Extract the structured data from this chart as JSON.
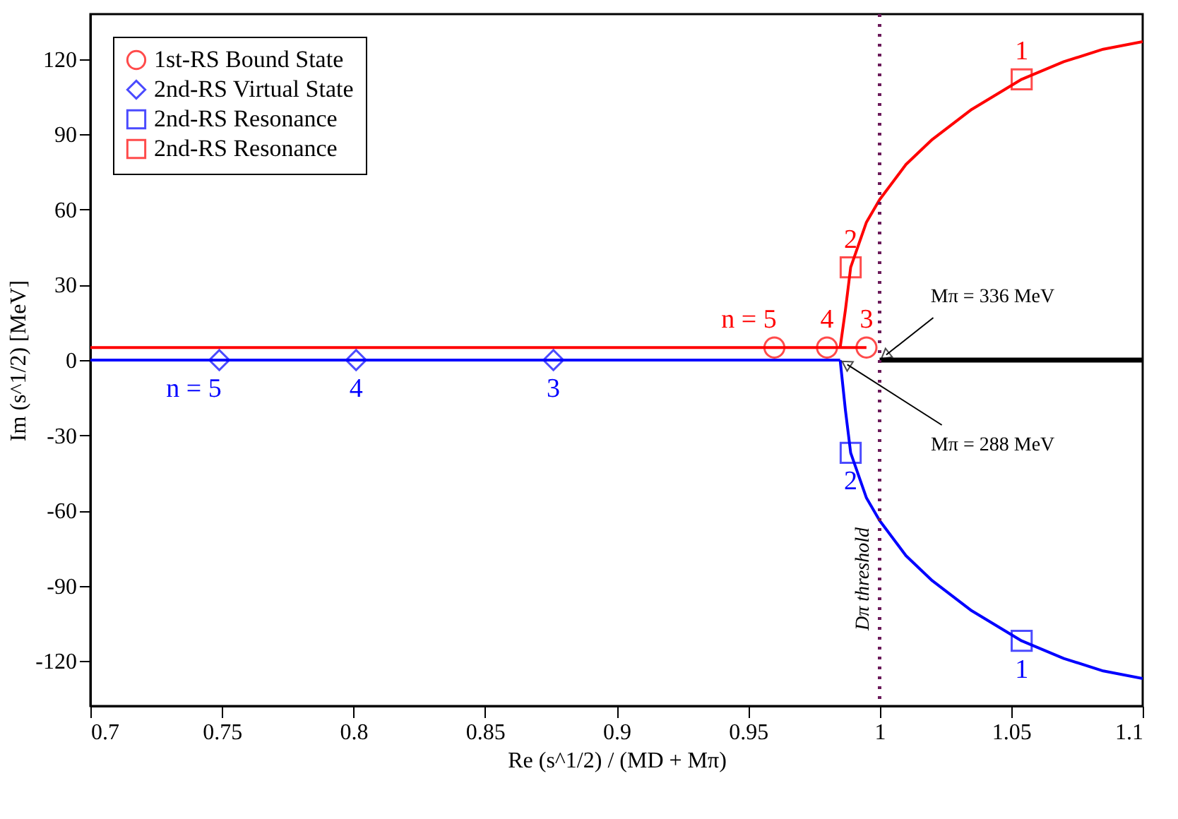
{
  "chart_data": {
    "type": "scatter",
    "xlabel": "Re (s^1/2) / (MD + Mπ)",
    "ylabel": "Im (s^1/2)  [MeV]",
    "xlim": [
      0.7,
      1.1
    ],
    "ylim": [
      -138,
      138
    ],
    "xticks": [
      0.7,
      0.75,
      0.8,
      0.85,
      0.9,
      0.95,
      {
        "value": 1.0,
        "label": "1"
      },
      1.05,
      1.1
    ],
    "yticks": [
      -120,
      -90,
      -60,
      -30,
      0,
      30,
      60,
      90,
      120
    ],
    "grid": false,
    "legend": "top left",
    "series": [
      {
        "type": "line",
        "color": "#ff0000",
        "marker": "none",
        "x": [
          0.7,
          0.995
        ],
        "values": [
          5,
          5
        ]
      },
      {
        "type": "line",
        "color": "#0000ff",
        "marker": "none",
        "x": [
          0.7,
          0.985
        ],
        "values": [
          0,
          0
        ]
      },
      {
        "type": "line",
        "color": "#ff0000",
        "marker": "none",
        "x": [
          0.985,
          0.987,
          0.989,
          0.995,
          1.0,
          1.01,
          1.02,
          1.035,
          1.054,
          1.07,
          1.085,
          1.1
        ],
        "values": [
          5,
          20,
          37,
          55,
          64,
          78,
          88,
          100,
          112,
          119,
          124,
          127
        ]
      },
      {
        "type": "line",
        "color": "#0000ff",
        "marker": "none",
        "x": [
          0.985,
          0.987,
          0.989,
          0.995,
          1.0,
          1.01,
          1.02,
          1.035,
          1.054,
          1.07,
          1.085,
          1.1
        ],
        "values": [
          0,
          -20,
          -37,
          -55,
          -64,
          -78,
          -88,
          -100,
          -112,
          -119,
          -124,
          -127
        ]
      },
      {
        "type": "line",
        "color": "#000000",
        "marker": "none",
        "x": [
          1.0,
          1.1
        ],
        "values": [
          0,
          0
        ]
      },
      {
        "name": "1st-RS Bound State",
        "color": "#ff0000",
        "marker": "circle",
        "x": [
          0.96,
          0.98,
          0.995
        ],
        "values": [
          5,
          5,
          5
        ]
      },
      {
        "name": "2nd-RS Virtual State",
        "color": "#0000ff",
        "marker": "diamond",
        "x": [
          0.749,
          0.801,
          0.876
        ],
        "values": [
          0,
          0,
          0
        ]
      },
      {
        "name": "2nd-RS Resonance",
        "color": "#0000ff",
        "marker": "square",
        "x": [
          0.989,
          1.054
        ],
        "values": [
          -37,
          -112
        ]
      },
      {
        "name": "2nd-RS Resonance",
        "color": "#ff0000",
        "marker": "square",
        "x": [
          0.989,
          1.054
        ],
        "values": [
          37,
          112
        ]
      }
    ],
    "ref_lines": [
      {
        "axis": "x",
        "value": 1.0,
        "label": "Dπ threshold",
        "color": "#6b1a5a",
        "line_style": "dotted"
      }
    ],
    "annotations": [
      {
        "text": "n = 5",
        "x": 0.96,
        "y": 5
      },
      {
        "text": "4",
        "x": 0.98,
        "y": 5
      },
      {
        "text": "3",
        "x": 0.995,
        "y": 5
      },
      {
        "text": "2",
        "x": 0.989,
        "y": 37
      },
      {
        "text": "1",
        "x": 1.054,
        "y": 112
      },
      {
        "text": "n = 5",
        "x": 0.749,
        "y": 0
      },
      {
        "text": "4",
        "x": 0.801,
        "y": 0
      },
      {
        "text": "3",
        "x": 0.876,
        "y": 0
      },
      {
        "text": "2",
        "x": 0.989,
        "y": -37
      },
      {
        "text": "1",
        "x": 1.054,
        "y": -112
      },
      {
        "text": "Mπ = 336 MeV",
        "x": 1.0,
        "y": 0
      },
      {
        "text": "Mπ = 288 MeV",
        "x": 0.985,
        "y": 0
      }
    ]
  }
}
